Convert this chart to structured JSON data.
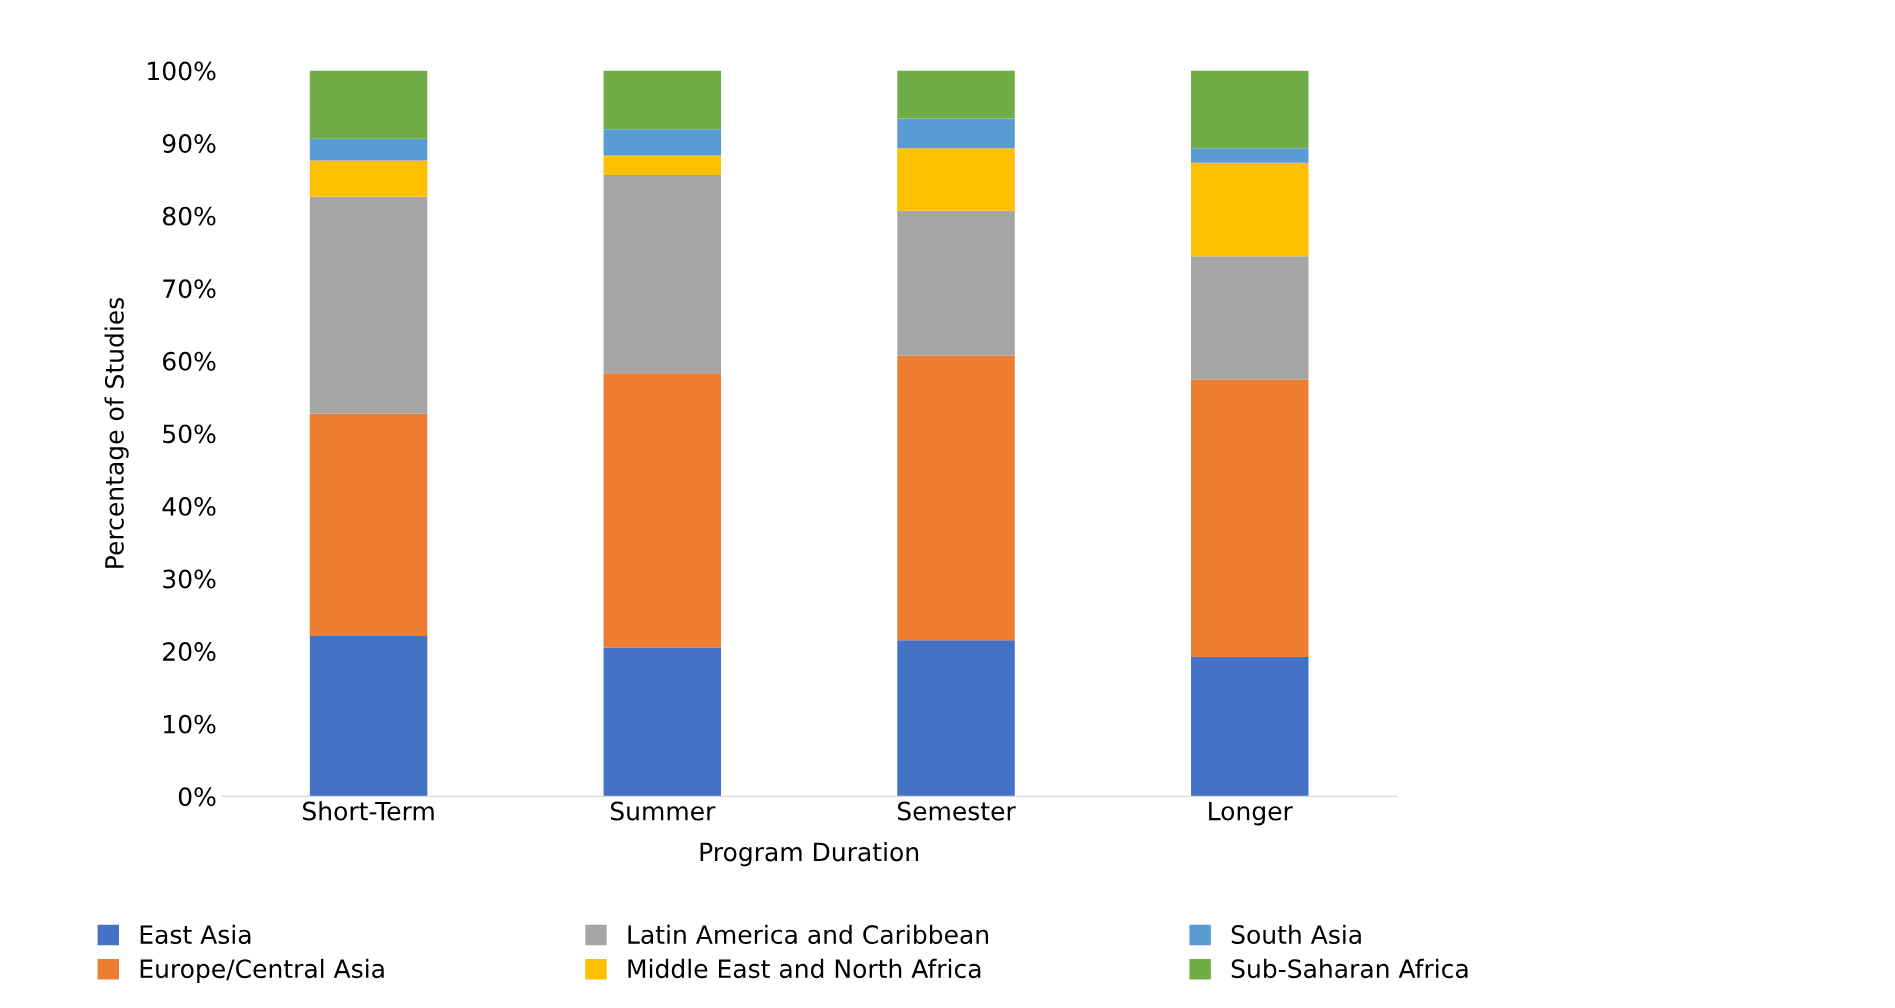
{
  "chart_data": {
    "type": "bar",
    "stacked": true,
    "xlabel": "Program Duration",
    "ylabel": "Percentage of Studies",
    "categories": [
      "Short-Term",
      "Summer",
      "Semester",
      "Longer"
    ],
    "ylim": [
      0,
      100
    ],
    "yticks": [
      {
        "value": 0,
        "label": "0%"
      },
      {
        "value": 10,
        "label": "10%"
      },
      {
        "value": 20,
        "label": "20%"
      },
      {
        "value": 30,
        "label": "30%"
      },
      {
        "value": 40,
        "label": "40%"
      },
      {
        "value": 50,
        "label": "50%"
      },
      {
        "value": 60,
        "label": "60%"
      },
      {
        "value": 70,
        "label": "70%"
      },
      {
        "value": 80,
        "label": "80%"
      },
      {
        "value": 90,
        "label": "90%"
      },
      {
        "value": 100,
        "label": "100%"
      }
    ],
    "grid": false,
    "legend": "bottom",
    "series": [
      {
        "name": "East Asia",
        "color": "#4472c4",
        "values": [
          22.1,
          20.5,
          21.5,
          19.2
        ]
      },
      {
        "name": "Europe/Central Asia",
        "color": "#ed7d31",
        "values": [
          30.6,
          37.8,
          39.2,
          38.2
        ]
      },
      {
        "name": "Latin America and Caribbean",
        "color": "#a5a5a5",
        "values": [
          29.9,
          27.3,
          20.0,
          17.0
        ]
      },
      {
        "name": "Middle East and North Africa",
        "color": "#ffc000",
        "values": [
          5.0,
          2.7,
          8.6,
          12.9
        ]
      },
      {
        "name": "South Asia",
        "color": "#5b9bd5",
        "values": [
          3.0,
          3.6,
          4.1,
          2.0
        ]
      },
      {
        "name": "Sub-Saharan Africa",
        "color": "#70ad47",
        "values": [
          9.4,
          8.1,
          6.6,
          10.7
        ]
      }
    ]
  }
}
